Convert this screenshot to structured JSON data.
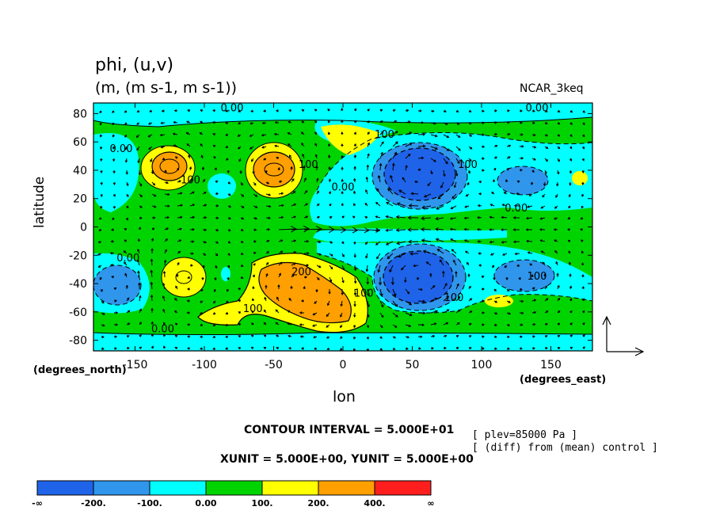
{
  "title": "phi, (u,v)",
  "subtitle": "(m, (m s-1, m s-1))",
  "model": "NCAR_3keq",
  "contour_interval": "CONTOUR INTERVAL = 5.000E+01",
  "xyunit": "XUNIT = 5.000E+00, YUNIT = 5.000E+00",
  "notes": [
    "[ plev=85000 Pa ]",
    "[ (diff) from (mean) control ]"
  ],
  "colors": {
    "c1": "#1f63e8",
    "c2": "#2f96ec",
    "c3": "#00ffff",
    "c4": "#00d400",
    "c5": "#ffff00",
    "c6": "#ffa000",
    "c7": "#ff1e1e"
  },
  "chart_data": {
    "type": "heatmap",
    "title": "phi, (u,v)",
    "subtitle": "(m, (m s-1, m s-1))",
    "xlabel": "lon",
    "ylabel": "latitude",
    "x_unit": "(degrees_east)",
    "y_unit": "(degrees_north)",
    "xlim": [
      -180,
      180
    ],
    "ylim": [
      -87.5,
      87.5
    ],
    "xticks": [
      -150,
      -100,
      -50,
      0,
      50,
      100,
      150
    ],
    "xtick_labels": [
      "-150",
      "-100",
      "-50",
      "0",
      "50",
      "100",
      "150"
    ],
    "yticks": [
      80,
      60,
      40,
      20,
      0,
      -20,
      -40,
      -60,
      -80
    ],
    "ytick_labels": [
      "80",
      "60",
      "40",
      "20",
      "0",
      "-20",
      "-40",
      "-60",
      "-80"
    ],
    "colorbar": {
      "labels": [
        "-∞",
        "-200.",
        "-100.",
        "0.00",
        "100.",
        "200.",
        "400.",
        "∞"
      ],
      "colors": [
        "#1f63e8",
        "#2f96ec",
        "#00ffff",
        "#00d400",
        "#ffff00",
        "#ffa000",
        "#ff1e1e"
      ]
    },
    "contour_labels": [
      {
        "lon": -80,
        "lat": 84,
        "text": "0.00"
      },
      {
        "lon": 140,
        "lat": 84,
        "text": "0.00"
      },
      {
        "lon": -160,
        "lat": 55,
        "text": "0.00"
      },
      {
        "lon": 30,
        "lat": 65,
        "text": "100"
      },
      {
        "lon": -110,
        "lat": 33,
        "text": "100"
      },
      {
        "lon": -25,
        "lat": 44,
        "text": "100"
      },
      {
        "lon": 0,
        "lat": 28,
        "text": "0.00"
      },
      {
        "lon": 90,
        "lat": 44,
        "text": "100"
      },
      {
        "lon": 125,
        "lat": 13,
        "text": "0.00"
      },
      {
        "lon": -155,
        "lat": -22,
        "text": "0.00"
      },
      {
        "lon": -30,
        "lat": -32,
        "text": "200"
      },
      {
        "lon": 15,
        "lat": -47,
        "text": "100"
      },
      {
        "lon": -65,
        "lat": -58,
        "text": "100"
      },
      {
        "lon": 140,
        "lat": -35,
        "text": "100"
      },
      {
        "lon": 80,
        "lat": -50,
        "text": "100"
      },
      {
        "lon": -130,
        "lat": -72,
        "text": "0.00"
      }
    ],
    "vector_reference": {
      "xunit": 5.0,
      "yunit": 5.0
    }
  }
}
